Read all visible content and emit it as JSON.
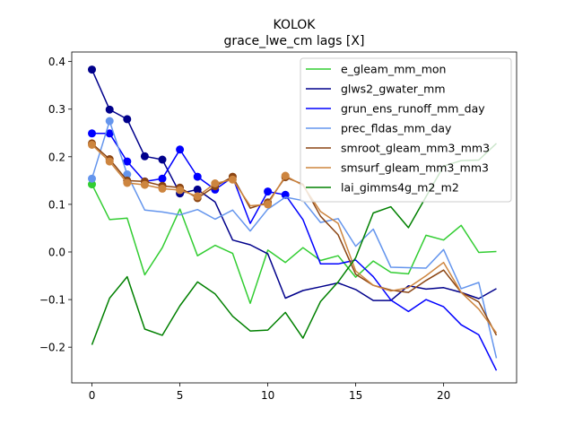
{
  "chart_data": {
    "type": "line",
    "title": "KOLOK",
    "subtitle": "grace_lwe_cm lags [X]",
    "xlabel": "",
    "ylabel": "",
    "xlim": [
      -1.15,
      24.15
    ],
    "ylim": [
      -0.275,
      0.42
    ],
    "xticks": [
      0,
      5,
      10,
      15,
      20
    ],
    "yticks": [
      -0.2,
      -0.1,
      0.0,
      0.1,
      0.2,
      0.3,
      0.4
    ],
    "ytick_labels": [
      "−0.2",
      "−0.1",
      "0.0",
      "0.1",
      "0.2",
      "0.3",
      "0.4"
    ],
    "grid": false,
    "legend_position": "upper-right",
    "x": [
      0,
      1,
      2,
      3,
      4,
      5,
      6,
      7,
      8,
      9,
      10,
      11,
      12,
      13,
      14,
      15,
      16,
      17,
      18,
      19,
      20,
      21,
      22,
      23
    ],
    "series": [
      {
        "name": "e_gleam_mm_mon",
        "color": "#32cd32",
        "values": [
          0.142,
          0.068,
          0.071,
          -0.048,
          0.009,
          0.09,
          -0.008,
          0.014,
          -0.003,
          -0.108,
          0.004,
          -0.022,
          0.009,
          -0.018,
          -0.008,
          -0.053,
          -0.019,
          -0.043,
          -0.046,
          0.035,
          0.025,
          0.056,
          -0.001,
          0.001
        ],
        "markers": [
          0
        ]
      },
      {
        "name": "glws2_gwater_mm",
        "color": "#00008b",
        "values": [
          0.383,
          0.299,
          0.279,
          0.201,
          0.194,
          0.123,
          0.131,
          0.105,
          0.025,
          0.015,
          -0.004,
          -0.097,
          -0.081,
          -0.073,
          -0.065,
          -0.079,
          -0.102,
          -0.102,
          -0.071,
          -0.078,
          -0.075,
          -0.085,
          -0.098,
          -0.077
        ],
        "markers": [
          0,
          1,
          2,
          3,
          4,
          5,
          6
        ]
      },
      {
        "name": "grun_ens_runoff_mm_day",
        "color": "#0000ff",
        "values": [
          0.249,
          0.249,
          0.19,
          0.148,
          0.154,
          0.215,
          0.158,
          0.131,
          0.157,
          0.06,
          0.127,
          0.12,
          0.068,
          -0.025,
          -0.025,
          -0.017,
          -0.052,
          -0.101,
          -0.125,
          -0.1,
          -0.115,
          -0.153,
          -0.174,
          -0.249
        ],
        "markers": [
          0,
          1,
          2,
          3,
          4,
          5,
          6,
          7,
          10,
          11
        ]
      },
      {
        "name": "prec_fldas_mm_day",
        "color": "#6495ed",
        "values": [
          0.154,
          0.275,
          0.163,
          0.088,
          0.084,
          0.078,
          0.089,
          0.069,
          0.088,
          0.044,
          0.09,
          0.115,
          0.108,
          0.062,
          0.07,
          0.012,
          0.048,
          -0.032,
          -0.033,
          -0.034,
          0.005,
          -0.077,
          -0.064,
          -0.223
        ],
        "markers": [
          0,
          1,
          2
        ]
      },
      {
        "name": "smroot_gleam_mm3_mm3",
        "color": "#8b4513",
        "values": [
          0.228,
          0.195,
          0.15,
          0.148,
          0.139,
          0.135,
          0.113,
          0.138,
          0.158,
          0.092,
          0.104,
          0.157,
          0.142,
          0.075,
          0.036,
          -0.047,
          -0.07,
          -0.08,
          -0.085,
          -0.06,
          -0.038,
          -0.085,
          -0.105,
          -0.175
        ],
        "markers": [
          0,
          1,
          2,
          3,
          4,
          5,
          6,
          7,
          8,
          10,
          11
        ]
      },
      {
        "name": "smsurf_gleam_mm3_mm3",
        "color": "#cd853f",
        "values": [
          0.225,
          0.19,
          0.145,
          0.141,
          0.133,
          0.13,
          0.117,
          0.144,
          0.152,
          0.097,
          0.1,
          0.16,
          0.14,
          0.085,
          0.06,
          -0.04,
          -0.07,
          -0.082,
          -0.075,
          -0.05,
          -0.022,
          -0.085,
          -0.12,
          -0.17
        ],
        "markers": [
          0,
          1,
          2,
          3,
          4,
          5,
          6,
          7,
          8,
          10,
          11
        ]
      },
      {
        "name": "lai_gimms4g_m2_m2",
        "color": "#008000",
        "values": [
          -0.195,
          -0.097,
          -0.052,
          -0.162,
          -0.175,
          -0.113,
          -0.063,
          -0.088,
          -0.135,
          -0.166,
          -0.164,
          -0.127,
          -0.181,
          -0.104,
          -0.063,
          -0.012,
          0.082,
          0.095,
          0.051,
          0.116,
          0.18,
          0.192,
          0.193,
          0.228
        ],
        "markers": []
      }
    ]
  }
}
